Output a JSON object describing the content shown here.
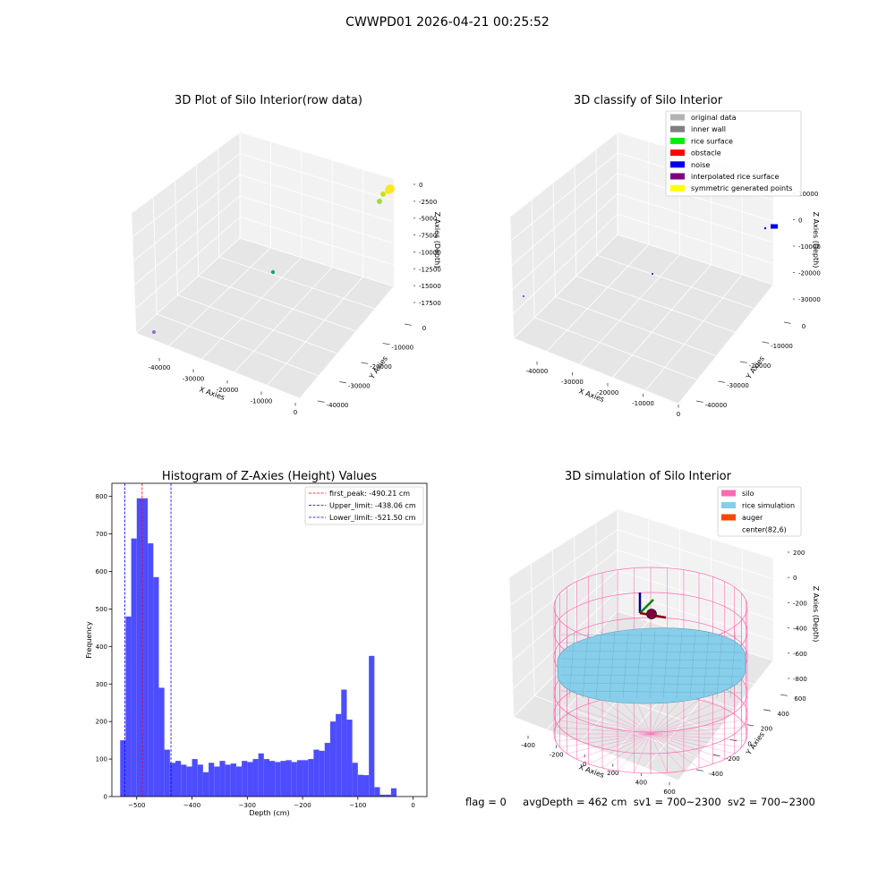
{
  "suptitle": "CWWPD01 2026-04-21 00:25:52",
  "status": {
    "flag": "flag = 0",
    "avg_depth": "avgDepth = 462 cm",
    "sv1": "sv1 = 700~2300",
    "sv2": "sv2 = 700~2300"
  },
  "chart_data": [
    {
      "type": "scatter",
      "title": "3D Plot of Silo Interior(row data)",
      "xlabel": "X Axies",
      "ylabel": "Y Axies",
      "zlabel": "Z Axies (Depth)",
      "x_ticks": [
        "-40000",
        "-30000",
        "-20000",
        "-10000",
        "0"
      ],
      "y_ticks": [
        "0",
        "-10000",
        "-20000",
        "-30000",
        "-40000"
      ],
      "z_ticks": [
        "0",
        "-2500",
        "-5000",
        "-7500",
        "-10000",
        "-12500",
        "-15000",
        "-17500"
      ],
      "points": [
        {
          "x": -500,
          "y": -1000,
          "z": -200,
          "color": "#fde725"
        },
        {
          "x": -700,
          "y": -1500,
          "z": -600,
          "color": "#fde725"
        },
        {
          "x": -1200,
          "y": -2200,
          "z": -1200,
          "color": "#c8e020"
        },
        {
          "x": -1500,
          "y": -2500,
          "z": -2200,
          "color": "#a0da39"
        },
        {
          "x": -25000,
          "y": -22000,
          "z": -12000,
          "color": "#1f9e89"
        },
        {
          "x": -43000,
          "y": -42000,
          "z": -17000,
          "color": "#8e6fc6"
        }
      ]
    },
    {
      "type": "scatter",
      "title": "3D classify of Silo Interior",
      "zlabel": "Z Axies (Depth)",
      "xlabel": "X Axies",
      "ylabel": "Y Axies",
      "x_ticks": [
        "-40000",
        "-30000",
        "-20000",
        "-10000",
        "0"
      ],
      "y_ticks": [
        "0",
        "-10000",
        "-20000",
        "-30000",
        "-40000"
      ],
      "z_ticks": [
        "10000",
        "0",
        "-10000",
        "-20000",
        "-30000"
      ],
      "legend_position": "top-right",
      "legend": [
        {
          "label": "original data",
          "color": "#b3b3b3"
        },
        {
          "label": "inner wall",
          "color": "#808080"
        },
        {
          "label": "rice surface",
          "color": "#00ee00"
        },
        {
          "label": "obstacle",
          "color": "#ff0000"
        },
        {
          "label": "noise",
          "color": "#0000ee"
        },
        {
          "label": "interpolated rice surface",
          "color": "#800080"
        },
        {
          "label": "symmetric generated points",
          "color": "#ffff00"
        }
      ],
      "points": [
        {
          "x": -500,
          "y": -1000,
          "z": 0,
          "color": "#0000ee"
        },
        {
          "x": -1500,
          "y": -1500,
          "z": 500,
          "color": "#0000ee"
        },
        {
          "x": -25000,
          "y": -22000,
          "z": -15000,
          "color": "#0000ee"
        },
        {
          "x": -45000,
          "y": -44000,
          "z": -30000,
          "color": "#0000ee"
        }
      ]
    },
    {
      "type": "bar",
      "title": "Histogram of Z-Axies (Height) Values",
      "xlabel": "Depth (cm)",
      "ylabel": "Frequency",
      "xlim": [
        -545,
        25
      ],
      "ylim": [
        0,
        835
      ],
      "x_ticks": [
        -500,
        -400,
        -300,
        -200,
        -100,
        0
      ],
      "y_ticks": [
        0,
        100,
        200,
        300,
        400,
        500,
        600,
        700,
        800
      ],
      "bin_start": -530,
      "bin_width": 10,
      "values": [
        150,
        480,
        688,
        795,
        795,
        675,
        585,
        290,
        125,
        90,
        95,
        85,
        80,
        100,
        85,
        65,
        90,
        80,
        95,
        85,
        88,
        80,
        95,
        92,
        100,
        115,
        100,
        95,
        92,
        95,
        97,
        92,
        97,
        97,
        100,
        125,
        122,
        143,
        200,
        220,
        285,
        205,
        90,
        58,
        57,
        375,
        25,
        5,
        5,
        22
      ],
      "bar_color": "#4d4dff",
      "reference_lines": [
        {
          "label": "first_peak: -490.21 cm",
          "value": -490.21,
          "color": "#ff0000"
        },
        {
          "label": "Upper_limit: -438.06 cm",
          "value": -438.06,
          "color": "#0000ff"
        },
        {
          "label": "Lower_limit: -521.50 cm",
          "value": -521.5,
          "color": "#0000ff"
        }
      ],
      "legend_position": "top-right"
    },
    {
      "type": "scatter",
      "title": "3D simulation of Silo Interior",
      "xlabel": "X Axies",
      "ylabel": "Y Axies",
      "zlabel": "Z Axies (Depth)",
      "x_ticks": [
        "-400",
        "-200",
        "0",
        "200",
        "400",
        "600"
      ],
      "y_ticks": [
        "600",
        "400",
        "200",
        "0",
        "-200",
        "-400"
      ],
      "z_ticks": [
        "200",
        "0",
        "-200",
        "-400",
        "-600",
        "-800"
      ],
      "legend_position": "top-right",
      "legend": [
        {
          "label": "silo",
          "color": "#ff69b4"
        },
        {
          "label": "rice simulation",
          "color": "#87ceeb"
        },
        {
          "label": "auger",
          "color": "#ff4500"
        },
        {
          "label": "center(82,6)",
          "color": ""
        }
      ],
      "silo_color": "#ff69b4",
      "rice_color": "#87ceeb",
      "center": [
        82,
        6
      ]
    }
  ]
}
